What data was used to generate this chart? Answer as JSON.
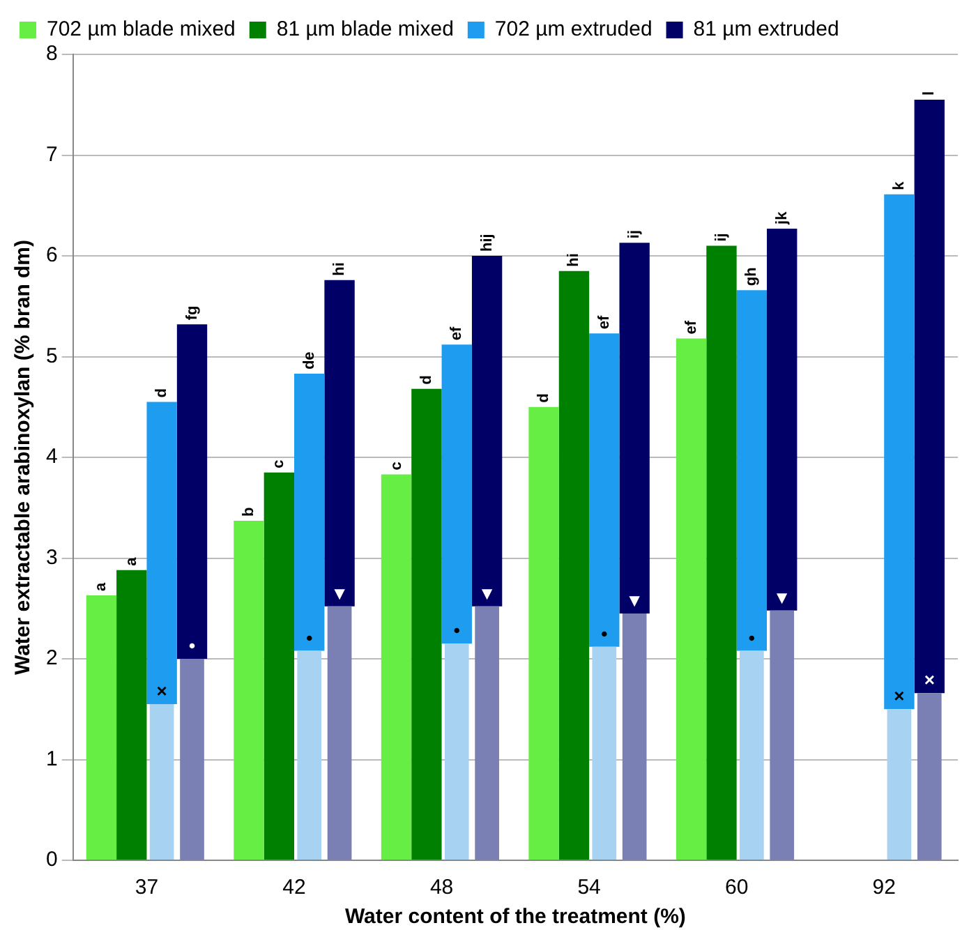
{
  "chart_data": {
    "type": "bar",
    "xlabel": "Water content of the treatment (%)",
    "ylabel": "Water extractable arabinoxylan (% bran dm)",
    "categories": [
      "37",
      "42",
      "48",
      "54",
      "60",
      "92"
    ],
    "ylim": [
      0,
      8
    ],
    "yticks": [
      0,
      1,
      2,
      3,
      4,
      5,
      6,
      7,
      8
    ],
    "grid": "y",
    "legend": "top left",
    "series": [
      {
        "name": "702 µm blade mixed",
        "color": "#66ee44",
        "values": [
          2.63,
          3.37,
          3.83,
          4.5,
          5.18,
          null
        ],
        "value_labels": [
          "a",
          "b",
          "c",
          "d",
          "ef",
          null
        ]
      },
      {
        "name": "81 µm blade mixed",
        "color": "#008000",
        "values": [
          2.88,
          3.85,
          4.68,
          5.85,
          6.1,
          null
        ],
        "value_labels": [
          "a",
          "c",
          "d",
          "hi",
          "ij",
          null
        ]
      },
      {
        "color": "#a8d2f2",
        "values": [
          1.55,
          2.08,
          2.15,
          2.12,
          2.08,
          1.5
        ],
        "value_labels": [
          "×",
          "•",
          "•",
          "•",
          "•",
          "×"
        ]
      },
      {
        "name": "702 µm extruded",
        "color": "#1e9cf0",
        "base": [
          1.55,
          2.08,
          2.15,
          2.12,
          2.08,
          1.5
        ],
        "values": [
          3.0,
          2.75,
          2.97,
          3.11,
          3.58,
          5.11
        ],
        "value_labels": [
          "d",
          "de",
          "ef",
          "ef",
          "gh",
          "k"
        ]
      },
      {
        "color": "#7b80b4",
        "values": [
          2.0,
          2.52,
          2.52,
          2.45,
          2.48,
          1.66
        ],
        "value_labels": [
          "•",
          "▼",
          "▼",
          "▼",
          "▼",
          "×"
        ]
      },
      {
        "name": "81 µm extruded",
        "color": "#000066",
        "base": [
          2.0,
          2.52,
          2.52,
          2.45,
          2.48,
          1.66
        ],
        "values": [
          3.32,
          3.24,
          3.48,
          3.68,
          3.79,
          5.89
        ],
        "value_labels": [
          "fg",
          "hi",
          "hij",
          "ij",
          "jk",
          "l"
        ]
      }
    ]
  }
}
